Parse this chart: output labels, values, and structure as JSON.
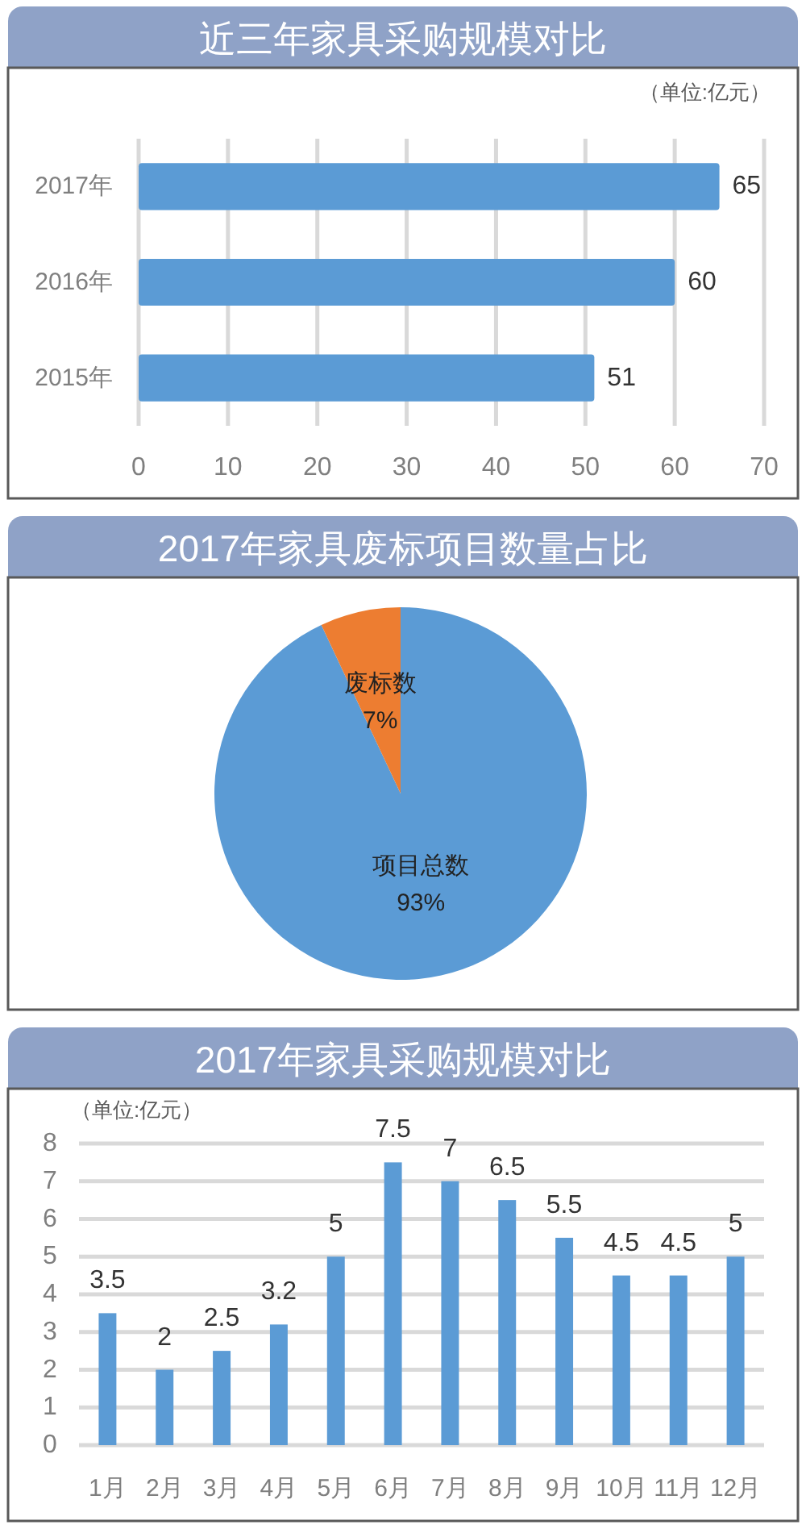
{
  "chart_data": [
    {
      "type": "bar",
      "orientation": "horizontal",
      "title": "近三年家具采购规模对比",
      "annotations": [
        "（单位:亿元）"
      ],
      "categories": [
        "2017年",
        "2016年",
        "2015年"
      ],
      "values": [
        65,
        60,
        51
      ],
      "color": "#5b9bd5",
      "xlim": [
        0,
        70
      ],
      "xticks": [
        0,
        10,
        20,
        30,
        40,
        50,
        60,
        70
      ],
      "grid": "x",
      "data_labels": true
    },
    {
      "type": "pie",
      "title": "2017年家具废标项目数量占比",
      "categories": [
        "项目总数",
        "废标数"
      ],
      "values": [
        93,
        7
      ],
      "colors": [
        "#5b9bd5",
        "#ed7d31"
      ],
      "value_labels": [
        "93%",
        "7%"
      ]
    },
    {
      "type": "bar",
      "title": "2017年家具采购规模对比",
      "annotations": [
        "（单位:亿元）"
      ],
      "categories": [
        "1月",
        "2月",
        "3月",
        "4月",
        "5月",
        "6月",
        "7月",
        "8月",
        "9月",
        "10月",
        "11月",
        "12月"
      ],
      "values": [
        3.5,
        2,
        2.5,
        3.2,
        5,
        7.5,
        7,
        6.5,
        5.5,
        4.5,
        4.5,
        5
      ],
      "color": "#5b9bd5",
      "ylim": [
        0,
        8
      ],
      "yticks": [
        0,
        1,
        2,
        3,
        4,
        5,
        6,
        7,
        8
      ],
      "grid": "y",
      "data_labels": true
    }
  ]
}
